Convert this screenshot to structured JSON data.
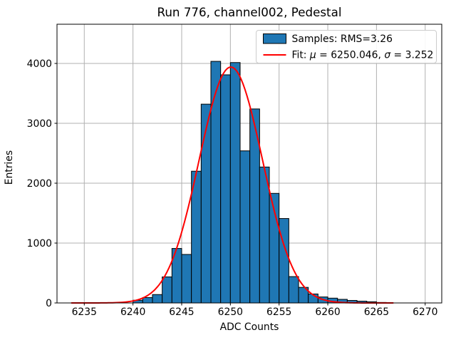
{
  "chart_data": {
    "type": "bar",
    "subtype": "histogram-with-gaussian-fit",
    "title": "Run 776, channel002, Pedestal",
    "xlabel": "ADC Counts",
    "ylabel": "Entries",
    "xlim": [
      6232.2,
      6271.7
    ],
    "ylim": [
      0,
      4655
    ],
    "xticks": [
      6235,
      6240,
      6245,
      6250,
      6255,
      6260,
      6265,
      6270
    ],
    "yticks": [
      0,
      1000,
      2000,
      3000,
      4000
    ],
    "grid": true,
    "bin_width": 1,
    "bin_left_edges": [
      6240,
      6241,
      6242,
      6243,
      6244,
      6245,
      6246,
      6247,
      6248,
      6249,
      6250,
      6251,
      6252,
      6253,
      6254,
      6255,
      6256,
      6257,
      6258,
      6259,
      6260,
      6261,
      6262,
      6263,
      6264,
      6265
    ],
    "counts": [
      45,
      90,
      140,
      435,
      910,
      810,
      2200,
      3320,
      4035,
      3810,
      4015,
      2540,
      3240,
      2270,
      1830,
      1410,
      440,
      260,
      150,
      100,
      80,
      60,
      42,
      30,
      20,
      8
    ],
    "fit": {
      "mu": 6250.046,
      "sigma": 3.252,
      "peak_amplitude": 3940,
      "x_start": 6233.7,
      "x_end": 6266.7
    },
    "legend": {
      "position": "upper right",
      "samples_label": "Samples: RMS=3.26",
      "fit_label": "Fit: μ = 6250.046, σ = 3.252"
    },
    "colors": {
      "bar_fill": "#1f77b4",
      "bar_edge": "#000000",
      "fit_line": "#ff0000",
      "grid_line": "#b0b0b0",
      "axes_frame": "#000000",
      "legend_border": "#cccccc",
      "background": "#ffffff"
    }
  }
}
